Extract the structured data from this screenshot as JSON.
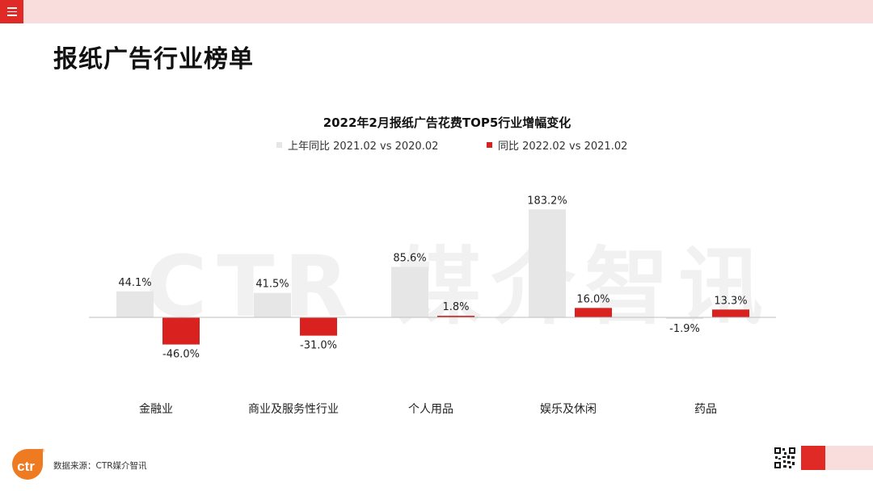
{
  "page": {
    "title": "报纸广告行业榜单",
    "watermark": "CTR 媒介智讯",
    "source": "数据来源：CTR媒介智讯",
    "logo_text": "ctr",
    "logo_mark": "®"
  },
  "colors": {
    "accent": "#e02a25",
    "accent_light": "#f9dcdc",
    "series_gray": "#e6e6e6",
    "series_red": "#d92220"
  },
  "chart_data": {
    "type": "bar",
    "title": "2022年2月报纸广告花费TOP5行业增幅变化",
    "categories": [
      "金融业",
      "商业及服务性行业",
      "个人用品",
      "娱乐及休闲",
      "药品"
    ],
    "series": [
      {
        "name": "上年同比 2021.02 vs 2020.02",
        "values": [
          44.1,
          41.5,
          85.6,
          183.2,
          -1.9
        ],
        "labels": [
          "44.1%",
          "41.5%",
          "85.6%",
          "183.2%",
          "-1.9%"
        ]
      },
      {
        "name": "同比 2022.02 vs 2021.02",
        "values": [
          -46.0,
          -31.0,
          1.8,
          16.0,
          13.3
        ],
        "labels": [
          "-46.0%",
          "-31.0%",
          "1.8%",
          "16.0%",
          "13.3%"
        ]
      }
    ],
    "unit": "%",
    "legend": "top",
    "grid": false
  }
}
